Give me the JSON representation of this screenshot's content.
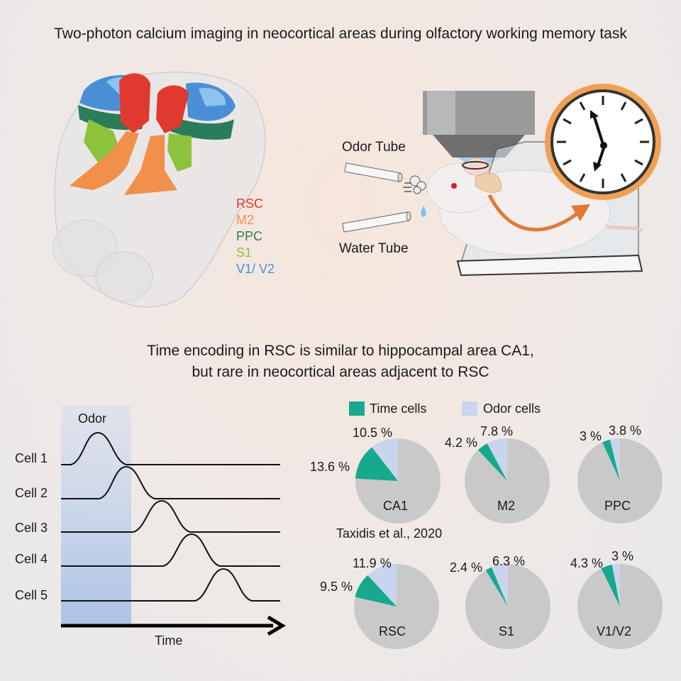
{
  "title": "Two-photon calcium imaging in neocortical areas during olfactory working memory task",
  "brain_legend": [
    {
      "label": "RSC",
      "color": "#e0392f"
    },
    {
      "label": "M2",
      "color": "#f0904a"
    },
    {
      "label": "PPC",
      "color": "#2a7d5a"
    },
    {
      "label": "S1",
      "color": "#8cc23c"
    },
    {
      "label": "V1/ V2",
      "color": "#4a8fd6"
    }
  ],
  "setup": {
    "odor_tube": "Odor Tube",
    "water_tube": "Water Tube"
  },
  "subtitle_line1": "Time encoding in RSC is similar to hippocampal area CA1,",
  "subtitle_line2": "but rare in neocortical areas adjacent to RSC",
  "traces": {
    "odor_label": "Odor",
    "cells": [
      "Cell 1",
      "Cell 2",
      "Cell 3",
      "Cell 4",
      "Cell 5"
    ],
    "time_label": "Time"
  },
  "colors": {
    "time_cells": "#17a98d",
    "odor_cells": "#c9d5ec",
    "other": "#c9c9c9",
    "odor_shade": "#b9cdea"
  },
  "chart_data": {
    "type": "pie",
    "legend": [
      "Time cells",
      "Odor cells"
    ],
    "reference": "Taxidis et al., 2020",
    "pies": [
      {
        "name": "CA1",
        "time_cells": 13.6,
        "odor_cells": 10.5,
        "time_label": "13.6 %",
        "odor_label": "10.5 %"
      },
      {
        "name": "M2",
        "time_cells": 4.2,
        "odor_cells": 7.8,
        "time_label": "4.2 %",
        "odor_label": "7.8 %"
      },
      {
        "name": "PPC",
        "time_cells": 3,
        "odor_cells": 3.8,
        "time_label": "3 %",
        "odor_label": "3.8 %"
      },
      {
        "name": "RSC",
        "time_cells": 9.5,
        "odor_cells": 11.9,
        "time_label": "9.5 %",
        "odor_label": "11.9 %"
      },
      {
        "name": "S1",
        "time_cells": 2.4,
        "odor_cells": 6.3,
        "time_label": "2.4 %",
        "odor_label": "6.3 %"
      },
      {
        "name": "V1/V2",
        "time_cells": 4.3,
        "odor_cells": 3,
        "time_label": "4.3 %",
        "odor_label": "3 %"
      }
    ]
  }
}
